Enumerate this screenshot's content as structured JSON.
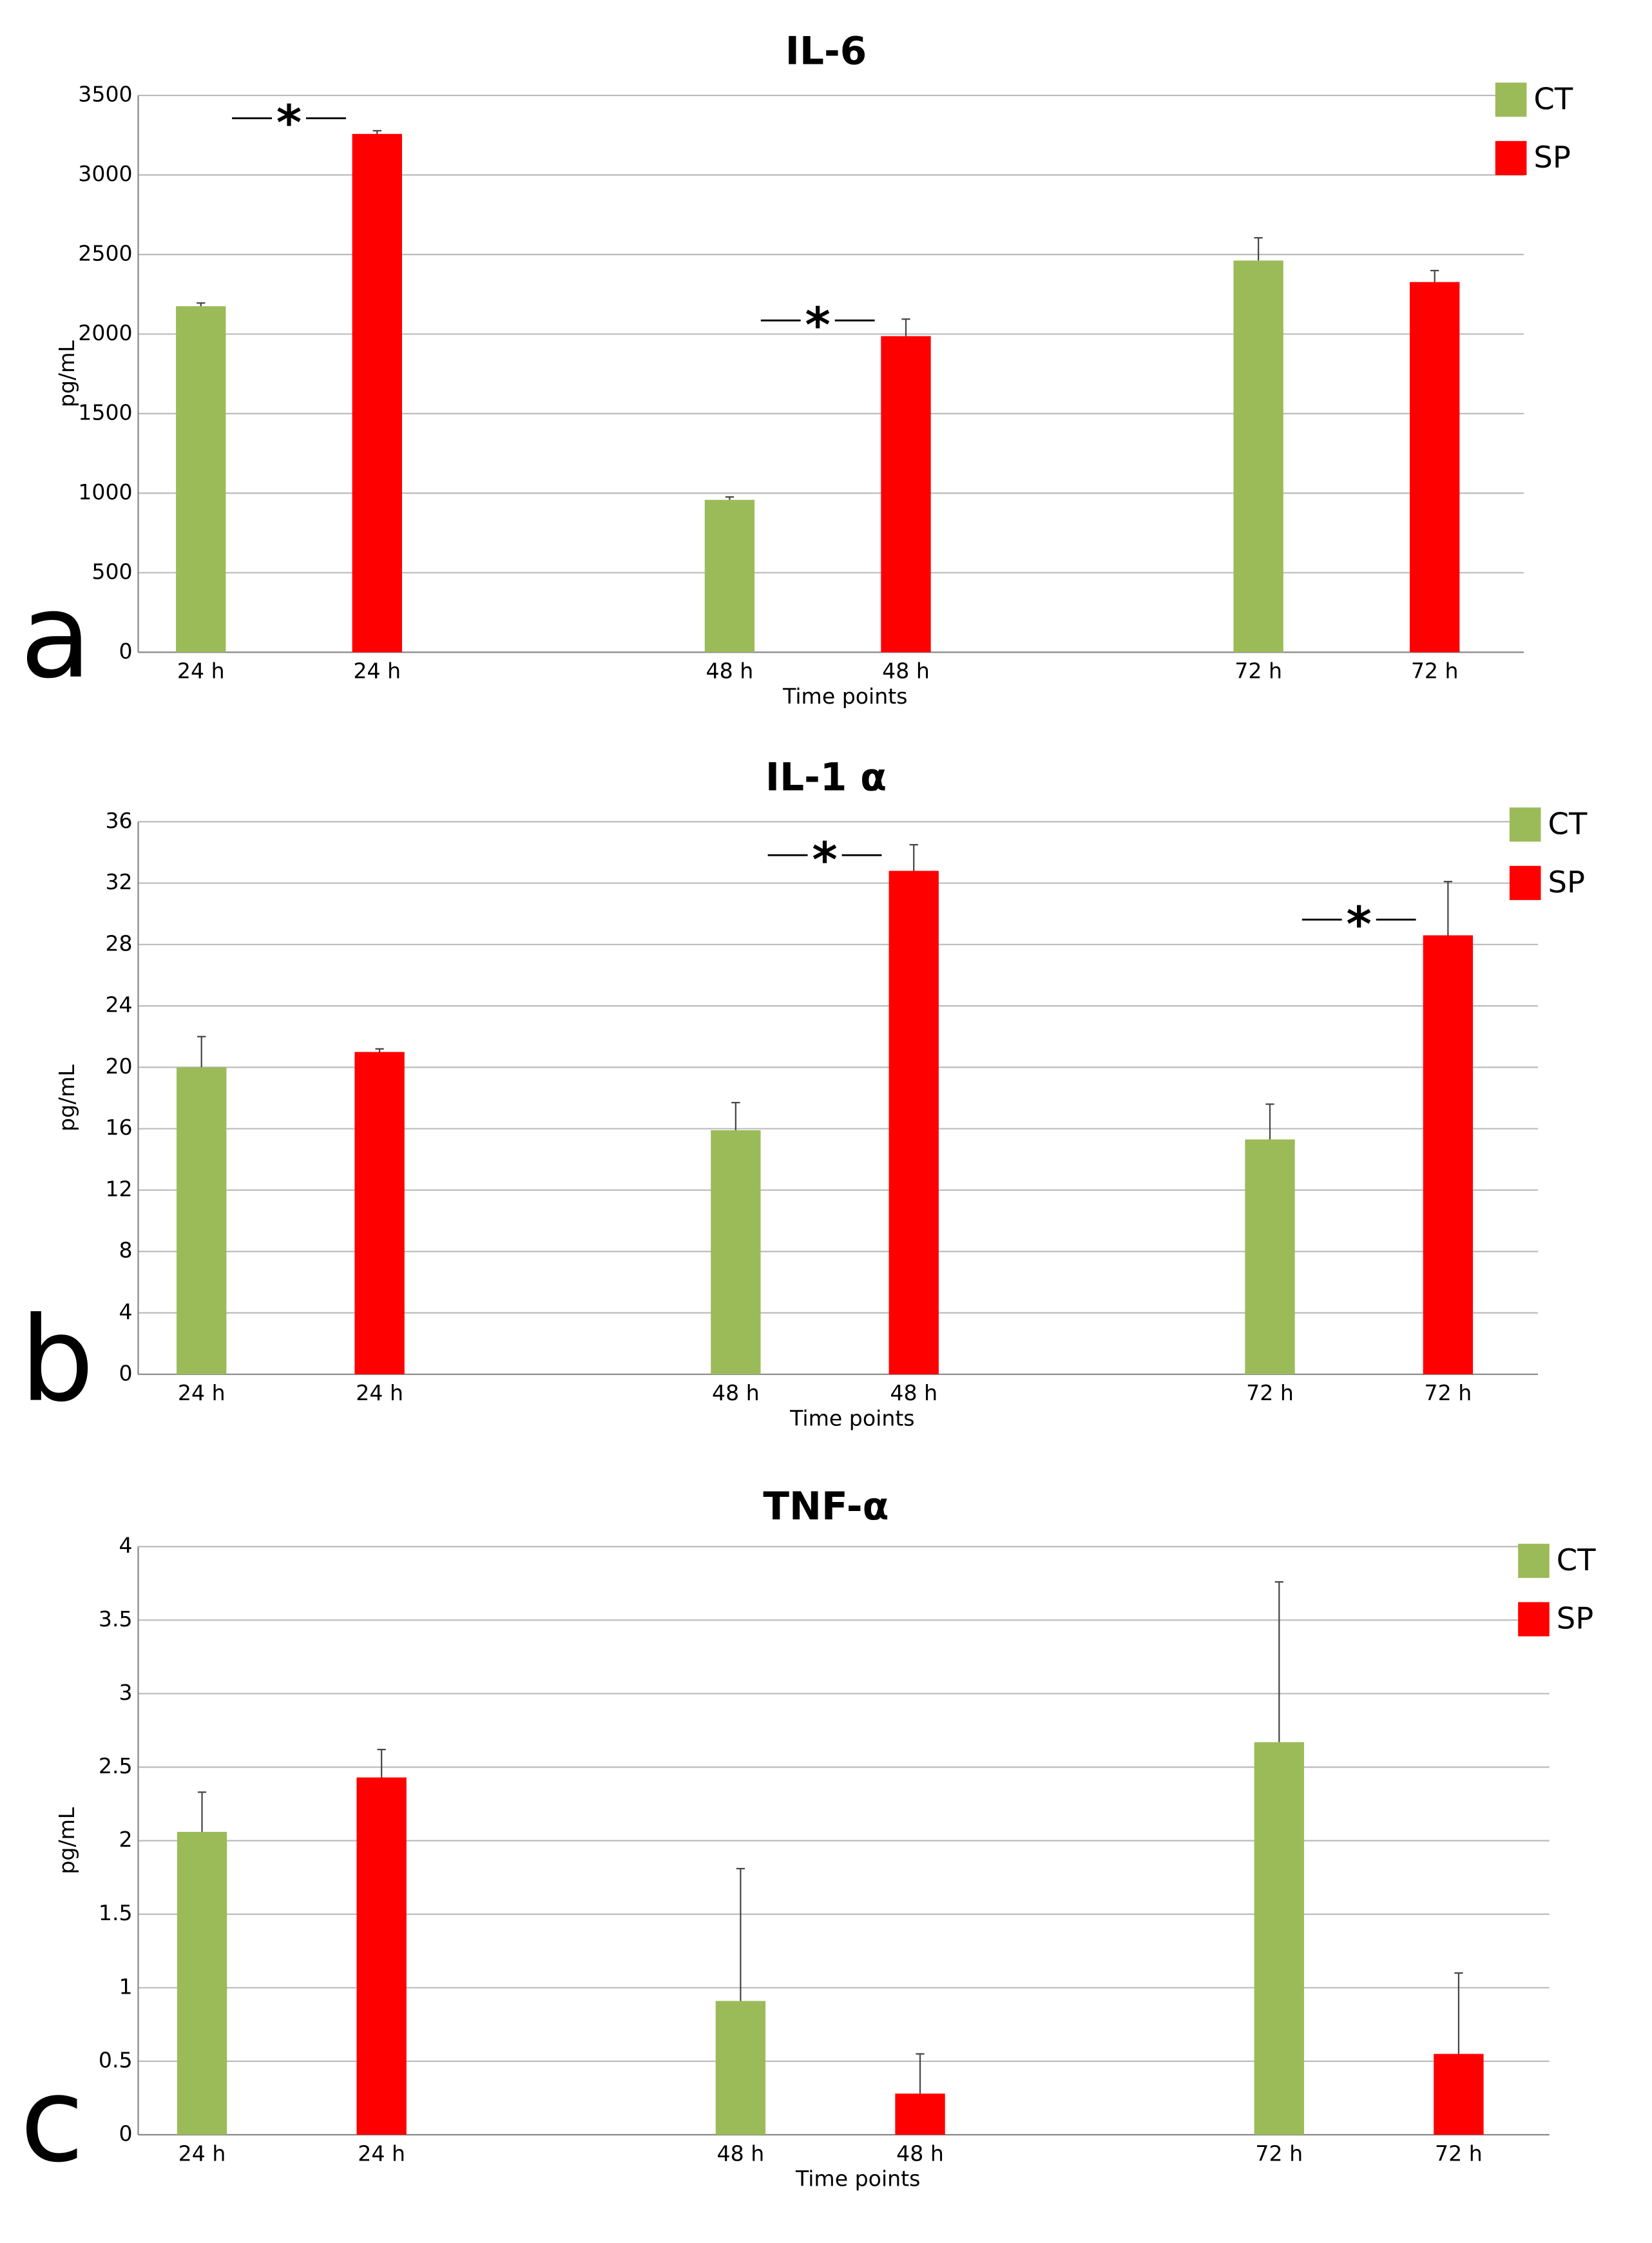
{
  "chart_data": [
    {
      "type": "bar",
      "title": "IL-6",
      "panel_label": "a",
      "x_label": "Time points",
      "y_label": "pg/mL",
      "categories": [
        "24 h",
        "24 h",
        "48 h",
        "48 h",
        "72 h",
        "72 h"
      ],
      "series": [
        {
          "name": "CT",
          "color": "#9bbb59",
          "values": [
            2175,
            null,
            958,
            null,
            2462,
            null
          ],
          "errors": [
            20,
            null,
            18,
            null,
            143,
            null
          ]
        },
        {
          "name": "SP",
          "color": "#ff0000",
          "values": [
            null,
            3258,
            null,
            1987,
            null,
            2327
          ],
          "errors": [
            null,
            20,
            null,
            107,
            null,
            72
          ]
        }
      ],
      "ylim": [
        0,
        3500
      ],
      "yticks": [
        0,
        500,
        1000,
        1500,
        2000,
        2500,
        3000,
        3500
      ],
      "grid": true,
      "legend": "top-right",
      "annotations": [
        {
          "text": "*",
          "category": 1
        },
        {
          "text": "*",
          "category": 3
        }
      ]
    },
    {
      "type": "bar",
      "title": "IL-1 α",
      "panel_label": "b",
      "x_label": "Time points",
      "y_label": "pg/mL",
      "categories": [
        "24 h",
        "24 h",
        "48 h",
        "48 h",
        "72 h",
        "72 h"
      ],
      "series": [
        {
          "name": "CT",
          "color": "#9bbb59",
          "values": [
            20.0,
            null,
            15.9,
            null,
            15.3,
            null
          ],
          "errors": [
            2.0,
            null,
            1.8,
            null,
            2.3,
            null
          ]
        },
        {
          "name": "SP",
          "color": "#ff0000",
          "values": [
            null,
            21.0,
            null,
            32.8,
            null,
            28.6
          ],
          "errors": [
            null,
            0.2,
            null,
            1.7,
            null,
            3.5
          ]
        }
      ],
      "ylim": [
        0,
        36
      ],
      "yticks": [
        0,
        4,
        8,
        12,
        16,
        20,
        24,
        28,
        32,
        36
      ],
      "grid": true,
      "legend": "top-right",
      "annotations": [
        {
          "text": "*",
          "category": 3
        },
        {
          "text": "*",
          "category": 5
        }
      ]
    },
    {
      "type": "bar",
      "title": "TNF-α",
      "panel_label": "c",
      "x_label": "Time points",
      "y_label": "pg/mL",
      "categories": [
        "24 h",
        "24 h",
        "48 h",
        "48 h",
        "72 h",
        "72 h"
      ],
      "series": [
        {
          "name": "CT",
          "color": "#9bbb59",
          "values": [
            2.06,
            null,
            0.91,
            null,
            2.67,
            null
          ],
          "errors": [
            0.27,
            null,
            0.9,
            null,
            1.09,
            null
          ]
        },
        {
          "name": "SP",
          "color": "#ff0000",
          "values": [
            null,
            2.43,
            null,
            0.28,
            null,
            0.55
          ],
          "errors": [
            null,
            0.19,
            null,
            0.27,
            null,
            0.55
          ]
        }
      ],
      "ylim": [
        0,
        4
      ],
      "yticks": [
        0,
        0.5,
        1,
        1.5,
        2,
        2.5,
        3,
        3.5,
        4
      ],
      "grid": true,
      "legend": "top-right",
      "annotations": []
    }
  ]
}
